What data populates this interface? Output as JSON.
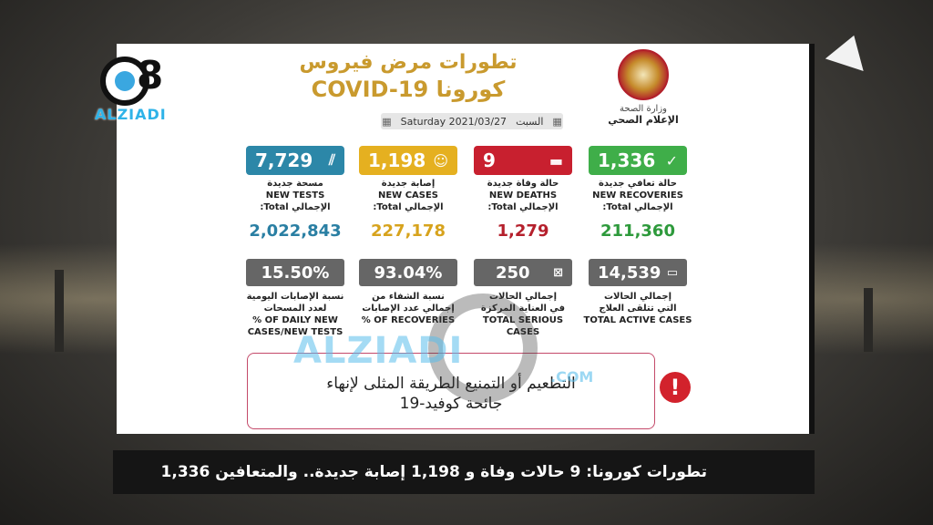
{
  "title": {
    "arabic": "تطورات مرض فيروس",
    "line2": "كورونا COVID-19"
  },
  "date": {
    "en": "Saturday 2021/03/27",
    "ar": "السبت"
  },
  "ministry": {
    "line1": "وزارة الصحة",
    "line2": "الإعلام الصحي"
  },
  "cards": [
    {
      "value": "1,336",
      "icon": "recovered-icon",
      "ar": "حالة تعافي جديدة",
      "en": "NEW RECOVERIES",
      "total_label": "الإجمالي Total:",
      "total": "211,360",
      "color": "#3fae49",
      "total_color": "#2e9a3c"
    },
    {
      "value": "9",
      "icon": "coffin-icon",
      "ar": "حالة وفاة جديدة",
      "en": "NEW DEATHS",
      "total_label": "الإجمالي Total:",
      "total": "1,279",
      "color": "#c8202f",
      "total_color": "#b5202c"
    },
    {
      "value": "1,198",
      "icon": "people-icon",
      "ar": "إصابة جديدة",
      "en": "NEW CASES",
      "total_label": "الإجمالي Total:",
      "total": "227,178",
      "color": "#e5b020",
      "total_color": "#d7a31d"
    },
    {
      "value": "7,729",
      "icon": "test-tube-icon",
      "ar": "مسحة جديدة",
      "en": "NEW TESTS",
      "total_label": "الإجمالي Total:",
      "total": "2,022,843",
      "color": "#2c87a8",
      "total_color": "#2a7fa3"
    }
  ],
  "stats": [
    {
      "value": "14,539",
      "icon": "bed-icon",
      "ar1": "إجمالي الحالات",
      "ar2": "التي تتلقى العلاج",
      "en": "TOTAL ACTIVE CASES"
    },
    {
      "value": "250",
      "icon": "icu-bed-icon",
      "ar1": "إجمالي الحالات",
      "ar2": "في العناية المركزة",
      "en": "TOTAL SERIOUS CASES"
    },
    {
      "value": "93.04%",
      "icon": "",
      "ar1": "نسبة الشفاء من",
      "ar2": "إجمالي عدد الإصابات",
      "en": "% OF RECOVERIES"
    },
    {
      "value": "15.50%",
      "icon": "",
      "ar1": "نسبة الإصابات اليومية",
      "ar2": "لعدد المسحات",
      "en": "% OF DAILY NEW CASES/NEW TESTS"
    }
  ],
  "message": {
    "line1": "التطعيم أو التمنيع الطريقة المثلى لإنهاء",
    "line2": "جائحة كوفيد-19"
  },
  "logo": {
    "text": "ALZIADI",
    "digit": "8"
  },
  "watermark": {
    "text": "ALZIADI",
    "com": ".COM"
  },
  "ticker": "تطورات كورونا: 9 حالات وفاة و 1,198 إصابة جديدة.. والمتعافين 1,336"
}
